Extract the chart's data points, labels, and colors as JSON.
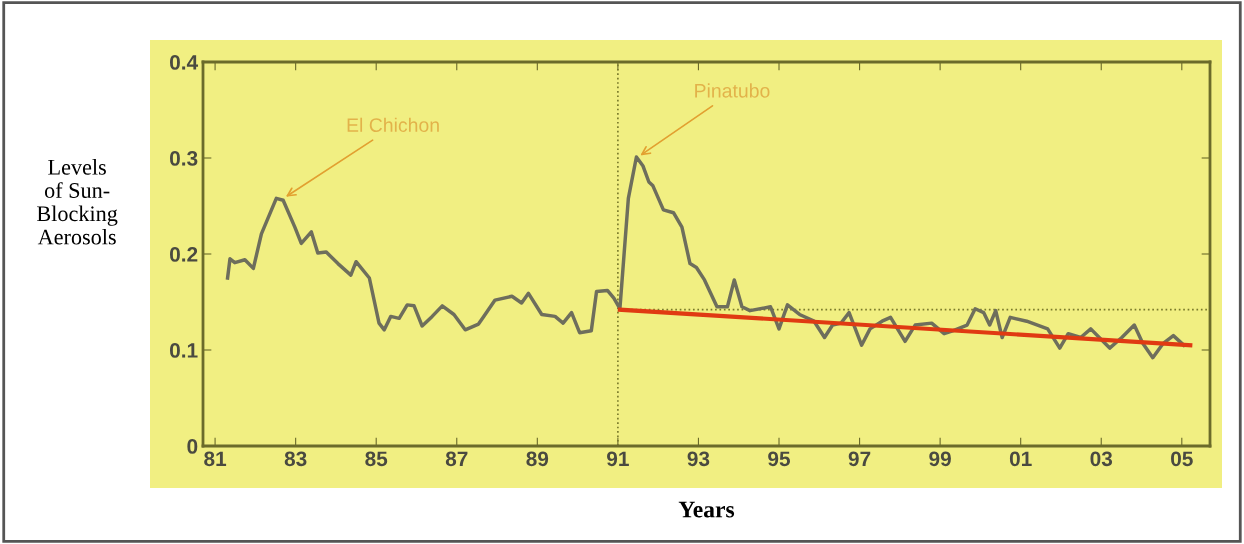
{
  "chart_data": {
    "type": "line",
    "xlabel": "Years",
    "ylabel": "Levels\nof Sun-\nBlocking\nAerosols",
    "xlim": [
      1980.7,
      2005.7
    ],
    "ylim": [
      0,
      0.4
    ],
    "xticks": [
      {
        "value": 1981,
        "label": "81"
      },
      {
        "value": 1983,
        "label": "83"
      },
      {
        "value": 1985,
        "label": "85"
      },
      {
        "value": 1987,
        "label": "87"
      },
      {
        "value": 1989,
        "label": "89"
      },
      {
        "value": 1991,
        "label": "91"
      },
      {
        "value": 1993,
        "label": "93"
      },
      {
        "value": 1995,
        "label": "95"
      },
      {
        "value": 1997,
        "label": "97"
      },
      {
        "value": 1999,
        "label": "99"
      },
      {
        "value": 2001,
        "label": "01"
      },
      {
        "value": 2003,
        "label": "03"
      },
      {
        "value": 2005,
        "label": "05"
      }
    ],
    "yticks": [
      0,
      0.1,
      0.2,
      0.3,
      0.4
    ],
    "grid": false,
    "legend": false,
    "marker": "none",
    "line_style": "solid",
    "series": [
      {
        "color": "#6e6e5c",
        "x": [
          1981.31,
          1981.37,
          1981.49,
          1981.74,
          1981.95,
          1982.15,
          1982.52,
          1982.69,
          1982.98,
          1983.14,
          1983.39,
          1983.55,
          1983.76,
          1984.05,
          1984.37,
          1984.5,
          1984.83,
          1985.07,
          1985.2,
          1985.36,
          1985.57,
          1985.77,
          1985.94,
          1986.14,
          1986.39,
          1986.64,
          1986.93,
          1987.21,
          1987.54,
          1987.67,
          1987.95,
          1988.37,
          1988.61,
          1988.78,
          1989.11,
          1989.44,
          1989.64,
          1989.85,
          1990.05,
          1990.34,
          1990.47,
          1990.74,
          1990.9,
          1991.05,
          1991.26,
          1991.46,
          1991.62,
          1991.77,
          1991.87,
          1992.13,
          1992.38,
          1992.59,
          1992.79,
          1992.95,
          1993.15,
          1993.46,
          1993.72,
          1993.89,
          1994.08,
          1994.28,
          1994.79,
          1995.0,
          1995.21,
          1995.51,
          1995.87,
          1996.13,
          1996.33,
          1996.54,
          1996.74,
          1997.05,
          1997.26,
          1997.56,
          1997.77,
          1998.13,
          1998.38,
          1998.79,
          1999.1,
          1999.31,
          1999.67,
          1999.87,
          2000.08,
          2000.23,
          2000.38,
          2000.54,
          2000.74,
          2001.15,
          2001.67,
          2001.97,
          2002.18,
          2002.49,
          2002.74,
          2003.0,
          2003.21,
          2003.51,
          2003.82,
          2004.03,
          2004.28,
          2004.54,
          2004.79,
          2005.05
        ],
        "values": [
          0.175,
          0.195,
          0.191,
          0.194,
          0.185,
          0.221,
          0.258,
          0.256,
          0.228,
          0.211,
          0.223,
          0.201,
          0.202,
          0.19,
          0.178,
          0.192,
          0.175,
          0.128,
          0.121,
          0.135,
          0.133,
          0.147,
          0.146,
          0.125,
          0.135,
          0.146,
          0.137,
          0.121,
          0.127,
          0.135,
          0.152,
          0.156,
          0.149,
          0.159,
          0.137,
          0.135,
          0.128,
          0.139,
          0.118,
          0.12,
          0.161,
          0.162,
          0.154,
          0.143,
          0.258,
          0.301,
          0.292,
          0.275,
          0.271,
          0.246,
          0.243,
          0.228,
          0.19,
          0.186,
          0.173,
          0.145,
          0.145,
          0.173,
          0.145,
          0.141,
          0.145,
          0.122,
          0.147,
          0.137,
          0.13,
          0.113,
          0.126,
          0.128,
          0.139,
          0.105,
          0.122,
          0.13,
          0.134,
          0.109,
          0.126,
          0.128,
          0.117,
          0.12,
          0.126,
          0.143,
          0.139,
          0.126,
          0.141,
          0.113,
          0.134,
          0.13,
          0.122,
          0.102,
          0.117,
          0.113,
          0.122,
          0.111,
          0.102,
          0.113,
          0.126,
          0.107,
          0.092,
          0.107,
          0.115,
          0.105
        ]
      },
      {
        "color": "#e03a12",
        "x": [
          1991.05,
          2005.21
        ],
        "values": [
          0.142,
          0.105
        ]
      }
    ],
    "ref_lines": [
      {
        "axis": "x",
        "value": 1991,
        "color": "#7a7a2a",
        "line_style": "dotted"
      },
      {
        "axis": "y",
        "value": 0.142,
        "color": "#7a7a2a",
        "line_style": "dotted"
      }
    ],
    "annotations": [
      {
        "text": "El Chichon",
        "x": 1982.7,
        "y": 0.258
      },
      {
        "text": "Pinatubo",
        "x": 1991.5,
        "y": 0.301
      }
    ]
  }
}
